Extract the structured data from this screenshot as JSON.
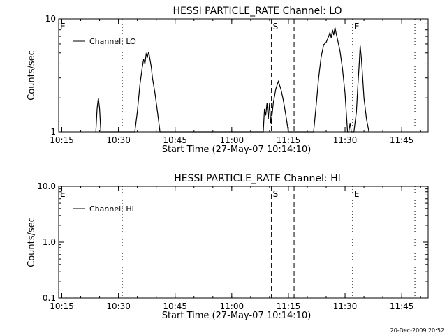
{
  "footer": {
    "timestamp": "20-Dec-2009 20:52"
  },
  "chart_data": [
    {
      "type": "line",
      "title": "HESSI PARTICLE_RATE Channel: LO",
      "xlabel": "Start Time (27-May-07 10:14:10)",
      "ylabel": "Counts/sec",
      "yscale": "log",
      "xlim": [
        "10:14:10",
        "11:52:00"
      ],
      "ylim": [
        1,
        10
      ],
      "ytick_labels": [
        "1",
        "10"
      ],
      "xtick_labels": [
        "10:15",
        "10:30",
        "10:45",
        "11:00",
        "11:15",
        "11:30",
        "11:45"
      ],
      "grid": false,
      "legend": "top-left",
      "annotations": [
        {
          "text": "E",
          "time": "10:14:10",
          "style": "dotted"
        },
        {
          "text": "",
          "time": "10:31:00",
          "style": "dotted"
        },
        {
          "text": "S",
          "time": "11:10:30",
          "style": "dashed"
        },
        {
          "text": "",
          "time": "11:16:30",
          "style": "dashed"
        },
        {
          "text": "E",
          "time": "11:32:00",
          "style": "dotted"
        },
        {
          "text": "",
          "time": "11:48:30",
          "style": "dotted"
        }
      ],
      "series": [
        {
          "name": "Channel: LO",
          "x": [
            "10:24:00",
            "10:24:20",
            "10:24:40",
            "10:25:00",
            "10:25:20",
            "10:34:20",
            "10:35:00",
            "10:35:40",
            "10:36:20",
            "10:36:40",
            "10:37:00",
            "10:37:20",
            "10:37:40",
            "10:38:00",
            "10:38:20",
            "10:38:40",
            "10:39:00",
            "10:39:40",
            "10:40:20",
            "10:41:00",
            "11:08:20",
            "11:08:40",
            "11:09:00",
            "11:09:20",
            "11:09:40",
            "11:10:00",
            "11:10:20",
            "11:10:40",
            "11:11:00",
            "11:11:40",
            "11:12:20",
            "11:13:00",
            "11:13:40",
            "11:14:20",
            "11:15:00",
            "11:21:40",
            "11:22:20",
            "11:23:00",
            "11:23:40",
            "11:24:20",
            "11:25:00",
            "11:25:40",
            "11:26:00",
            "11:26:20",
            "11:26:40",
            "11:27:00",
            "11:27:20",
            "11:27:40",
            "11:28:00",
            "11:28:40",
            "11:29:20",
            "11:30:00",
            "11:30:40",
            "11:31:00",
            "11:31:20",
            "11:31:40",
            "11:32:00",
            "11:32:20",
            "11:33:00",
            "11:33:20",
            "11:33:40",
            "11:34:00",
            "11:34:20",
            "11:34:40",
            "11:35:00",
            "11:35:40",
            "11:36:20"
          ],
          "y": [
            1,
            1.6,
            2.0,
            1.6,
            1,
            1,
            1.5,
            2.6,
            3.8,
            4.4,
            4.0,
            4.9,
            4.6,
            5.1,
            4.4,
            3.8,
            3.0,
            2.2,
            1.5,
            1,
            1,
            1.6,
            1.4,
            1.8,
            1.3,
            1.8,
            1.2,
            1.4,
            1.8,
            2.4,
            2.8,
            2.4,
            1.9,
            1.4,
            1,
            1,
            1.7,
            3.0,
            4.6,
            5.9,
            6.2,
            7.0,
            7.6,
            6.8,
            8.0,
            7.2,
            8.4,
            7.4,
            6.6,
            5.2,
            3.6,
            2.2,
            1,
            1,
            1.2,
            1,
            1,
            1,
            1.5,
            2.4,
            3.6,
            5.8,
            4.4,
            3.0,
            2.0,
            1.3,
            1
          ]
        }
      ]
    },
    {
      "type": "line",
      "title": "HESSI PARTICLE_RATE Channel: HI",
      "xlabel": "Start Time (27-May-07 10:14:10)",
      "ylabel": "Counts/sec",
      "yscale": "log",
      "xlim": [
        "10:14:10",
        "11:52:00"
      ],
      "ylim": [
        0.1,
        10
      ],
      "ytick_labels": [
        "0.1",
        "1.0",
        "10.0"
      ],
      "xtick_labels": [
        "10:15",
        "10:30",
        "10:45",
        "11:00",
        "11:15",
        "11:30",
        "11:45"
      ],
      "grid": false,
      "legend": "top-left",
      "annotations": [
        {
          "text": "E",
          "time": "10:14:10",
          "style": "dotted"
        },
        {
          "text": "",
          "time": "10:31:00",
          "style": "dotted"
        },
        {
          "text": "S",
          "time": "11:10:30",
          "style": "dashed"
        },
        {
          "text": "",
          "time": "11:16:30",
          "style": "dashed"
        },
        {
          "text": "E",
          "time": "11:32:00",
          "style": "dotted"
        },
        {
          "text": "",
          "time": "11:48:30",
          "style": "dotted"
        }
      ],
      "series": [
        {
          "name": "Channel: HI",
          "x": [],
          "y": []
        }
      ]
    }
  ]
}
